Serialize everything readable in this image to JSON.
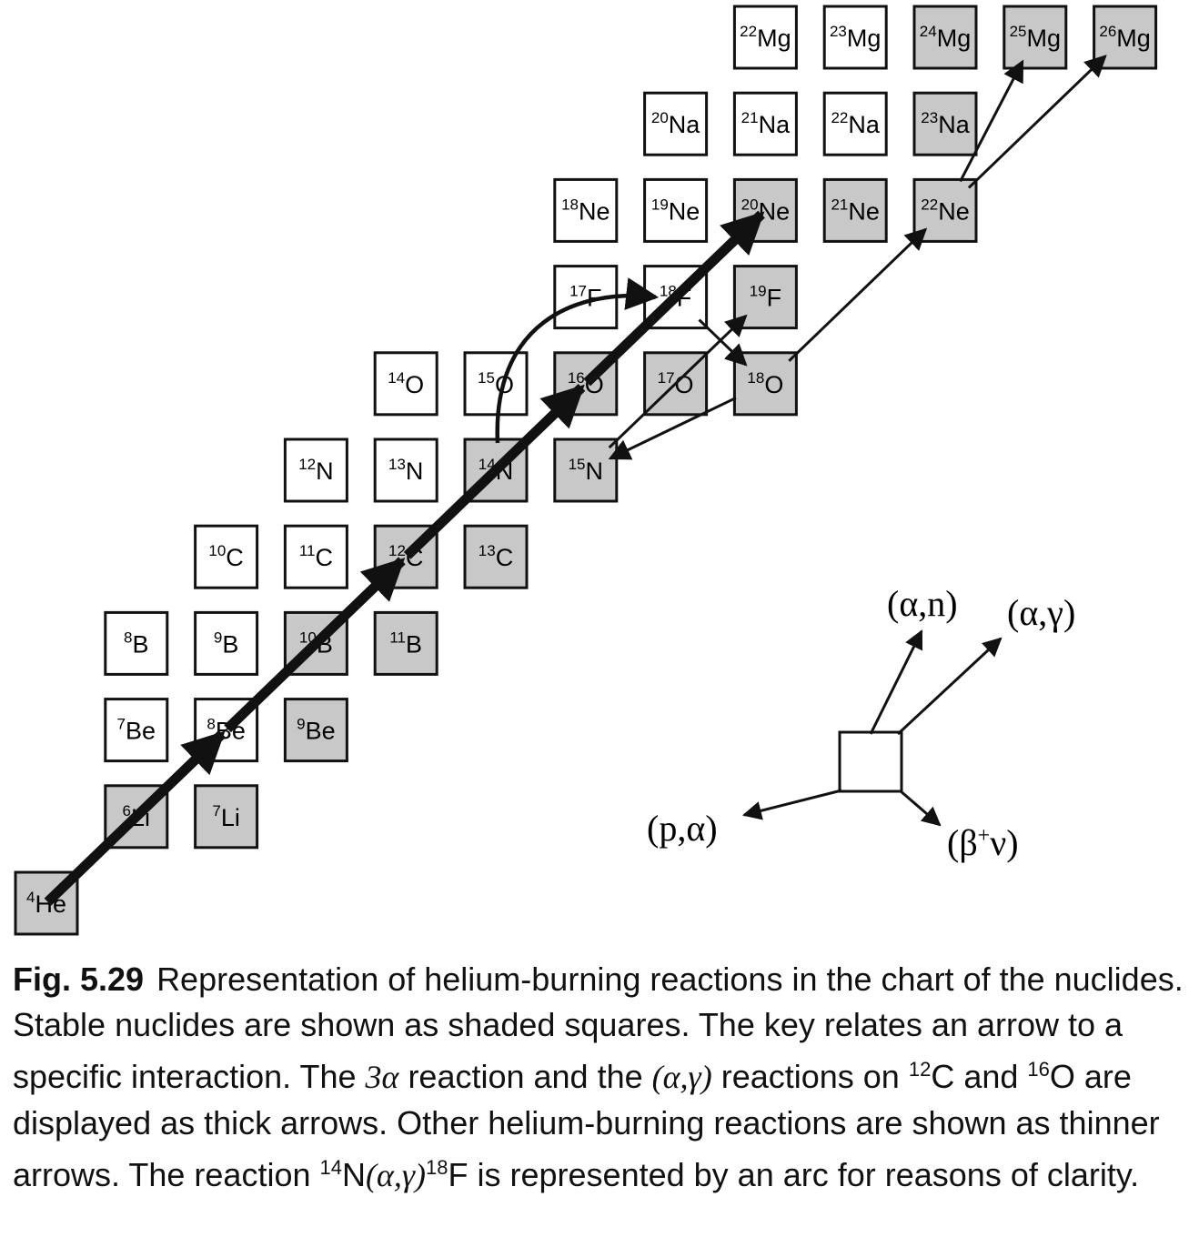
{
  "colors": {
    "stable": "#c8c8c8",
    "unstable": "#ffffff",
    "stroke": "#111111"
  },
  "nuclides": [
    {
      "A": "4",
      "el": "He",
      "stable": true
    },
    {
      "A": "6",
      "el": "Li",
      "stable": true
    },
    {
      "A": "7",
      "el": "Li",
      "stable": true
    },
    {
      "A": "7",
      "el": "Be",
      "stable": false
    },
    {
      "A": "8",
      "el": "Be",
      "stable": false
    },
    {
      "A": "9",
      "el": "Be",
      "stable": true
    },
    {
      "A": "8",
      "el": "B",
      "stable": false
    },
    {
      "A": "9",
      "el": "B",
      "stable": false
    },
    {
      "A": "10",
      "el": "B",
      "stable": true
    },
    {
      "A": "11",
      "el": "B",
      "stable": true
    },
    {
      "A": "10",
      "el": "C",
      "stable": false
    },
    {
      "A": "11",
      "el": "C",
      "stable": false
    },
    {
      "A": "12",
      "el": "C",
      "stable": true
    },
    {
      "A": "13",
      "el": "C",
      "stable": true
    },
    {
      "A": "12",
      "el": "N",
      "stable": false
    },
    {
      "A": "13",
      "el": "N",
      "stable": false
    },
    {
      "A": "14",
      "el": "N",
      "stable": true
    },
    {
      "A": "15",
      "el": "N",
      "stable": true
    },
    {
      "A": "14",
      "el": "O",
      "stable": false
    },
    {
      "A": "15",
      "el": "O",
      "stable": false
    },
    {
      "A": "16",
      "el": "O",
      "stable": true
    },
    {
      "A": "17",
      "el": "O",
      "stable": true
    },
    {
      "A": "18",
      "el": "O",
      "stable": true
    },
    {
      "A": "17",
      "el": "F",
      "stable": false
    },
    {
      "A": "18",
      "el": "F",
      "stable": false
    },
    {
      "A": "19",
      "el": "F",
      "stable": true
    },
    {
      "A": "18",
      "el": "Ne",
      "stable": false
    },
    {
      "A": "19",
      "el": "Ne",
      "stable": false
    },
    {
      "A": "20",
      "el": "Ne",
      "stable": true
    },
    {
      "A": "21",
      "el": "Ne",
      "stable": true
    },
    {
      "A": "22",
      "el": "Ne",
      "stable": true
    },
    {
      "A": "20",
      "el": "Na",
      "stable": false
    },
    {
      "A": "21",
      "el": "Na",
      "stable": false
    },
    {
      "A": "22",
      "el": "Na",
      "stable": false
    },
    {
      "A": "23",
      "el": "Na",
      "stable": true
    },
    {
      "A": "22",
      "el": "Mg",
      "stable": false
    },
    {
      "A": "23",
      "el": "Mg",
      "stable": false
    },
    {
      "A": "24",
      "el": "Mg",
      "stable": true
    },
    {
      "A": "25",
      "el": "Mg",
      "stable": true
    },
    {
      "A": "26",
      "el": "Mg",
      "stable": true
    }
  ],
  "reactions": [
    {
      "from": "4He",
      "to": "8Be",
      "kind": "(α,γ)",
      "weight": "thick"
    },
    {
      "from": "8Be",
      "to": "12C",
      "kind": "(α,γ)",
      "weight": "thick"
    },
    {
      "from": "12C",
      "to": "16O",
      "kind": "(α,γ)",
      "weight": "thick"
    },
    {
      "from": "16O",
      "to": "20Ne",
      "kind": "(α,γ)",
      "weight": "thick"
    },
    {
      "from": "14N",
      "to": "18F",
      "kind": "(α,γ)",
      "weight": "thin",
      "style": "arc"
    },
    {
      "from": "18F",
      "to": "18O",
      "kind": "(β+ν)",
      "weight": "thin"
    },
    {
      "from": "18O",
      "to": "15N",
      "kind": "(p,α)",
      "weight": "thin"
    },
    {
      "from": "15N",
      "to": "19F",
      "kind": "(α,γ)",
      "weight": "thin"
    },
    {
      "from": "18O",
      "to": "22Ne",
      "kind": "(α,γ)",
      "weight": "thin"
    },
    {
      "from": "22Ne",
      "to": "25Mg",
      "kind": "(α,n)",
      "weight": "thin"
    },
    {
      "from": "22Ne",
      "to": "26Mg",
      "kind": "(α,γ)",
      "weight": "thin"
    }
  ],
  "key": {
    "alpha_n": "(α,n)",
    "alpha_gamma": "(α,γ)",
    "p_alpha": "(p,α)",
    "beta_plus_nu_base": "(β",
    "beta_plus_nu_sup": "+",
    "beta_plus_nu_end": "ν)"
  },
  "caption": {
    "fig_label": "Fig. 5.29",
    "t1": "Representation of helium-burning reactions in the chart of the nuclides. Stable nuclides are shown as shaded squares. The key relates an arrow to a specific interaction. The ",
    "three_alpha": "3α",
    "t2": " reaction and the ",
    "ag1": "(α,γ)",
    "t3": " reactions on ",
    "c12_A": "12",
    "c12_el": "C and ",
    "o16_A": "16",
    "o16_el": "O are displayed as thick arrows. Other helium-burning reactions are shown as thinner arrows. The reaction ",
    "n14_A": "14",
    "n14_el": "N",
    "ag2": "(α,γ)",
    "f18_A": "18",
    "f18_el": "F",
    "t4": " is represented by an arc for reasons of clarity."
  }
}
